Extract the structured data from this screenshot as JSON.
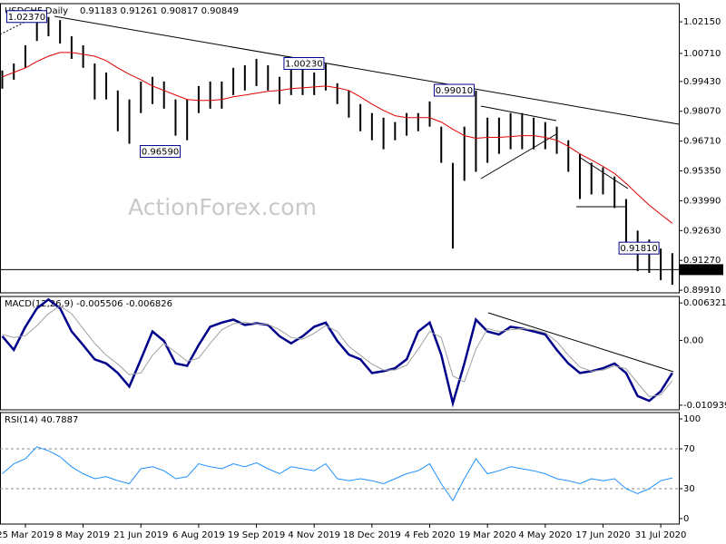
{
  "chart_data": [
    {
      "type": "hilo",
      "title": "USDCHF,Daily",
      "subtitle": "0.91183 0.91261 0.90817 0.90849",
      "watermark": "ActionForex.com",
      "color": "#000000",
      "high": [
        0.9993,
        1.0025,
        1.0108,
        1.0231,
        1.0237,
        1.0223,
        1.0149,
        1.0108,
        1.0025,
        0.9984,
        0.9902,
        0.9861,
        0.9943,
        0.9964,
        0.9943,
        0.9861,
        0.9861,
        0.9922,
        0.9943,
        0.9943,
        1.0005,
        1.0017,
        1.0046,
        1.0017,
        0.9964,
        1.0005,
        1.0005,
        0.9984,
        1.0023,
        0.9935,
        0.9902,
        0.984,
        0.9799,
        0.9778,
        0.9758,
        0.9799,
        0.9799,
        0.9852,
        0.9737,
        0.9572,
        0.9737,
        0.9901,
        0.9778,
        0.9778,
        0.9799,
        0.9799,
        0.9778,
        0.9758,
        0.9737,
        0.9675,
        0.9613,
        0.9572,
        0.9552,
        0.951,
        0.9407,
        0.9263,
        0.9222,
        0.9181,
        0.916
      ],
      "low": [
        0.991,
        0.9951,
        1.0005,
        1.0128,
        1.0149,
        1.0116,
        1.0046,
        1.0005,
        0.9861,
        0.9861,
        0.9716,
        0.9659,
        0.9799,
        0.984,
        0.9819,
        0.9696,
        0.9675,
        0.9799,
        0.9819,
        0.9819,
        0.9881,
        0.9902,
        0.9922,
        0.9902,
        0.984,
        0.9881,
        0.9881,
        0.9881,
        0.9902,
        0.984,
        0.9778,
        0.9716,
        0.9675,
        0.9634,
        0.9675,
        0.9696,
        0.9716,
        0.9737,
        0.9572,
        0.9181,
        0.949,
        0.9531,
        0.9572,
        0.9613,
        0.9634,
        0.9634,
        0.9634,
        0.9634,
        0.9613,
        0.9531,
        0.9407,
        0.9428,
        0.9428,
        0.9366,
        0.9202,
        0.9078,
        0.907,
        0.9037,
        0.9016
      ],
      "overlay": {
        "color": "#e00000",
        "values": [
          0.9964,
          0.9984,
          1.0005,
          1.0034,
          1.0058,
          1.0075,
          1.0075,
          1.0067,
          1.0058,
          1.0038,
          1.0005,
          0.9976,
          0.9951,
          0.9922,
          0.9902,
          0.9881,
          0.9861,
          0.9857,
          0.9857,
          0.9861,
          0.9873,
          0.9881,
          0.989,
          0.9898,
          0.9902,
          0.991,
          0.9914,
          0.9918,
          0.9922,
          0.9914,
          0.9902,
          0.9873,
          0.984,
          0.9811,
          0.9787,
          0.9778,
          0.9778,
          0.9778,
          0.9758,
          0.9725,
          0.9696,
          0.9684,
          0.9688,
          0.9688,
          0.9692,
          0.9696,
          0.9696,
          0.9688,
          0.9675,
          0.9647,
          0.9613,
          0.9585,
          0.9556,
          0.9523,
          0.9478,
          0.9428,
          0.9379,
          0.9337,
          0.9296
        ]
      },
      "annotations": [
        {
          "value": 1.0237,
          "label": "1.02370"
        },
        {
          "value": 1.0023,
          "label": "1.00230"
        },
        {
          "value": 0.9901,
          "label": "0.99010"
        },
        {
          "value": 0.9659,
          "label": "0.96590"
        },
        {
          "value": 0.9181,
          "label": "0.91810"
        }
      ],
      "last_price": {
        "value": 0.90849,
        "label": "0.90849"
      },
      "ylim": [
        0.8979,
        1.0298
      ],
      "yticks": [
        {
          "value": 1.0215,
          "label": "1.02150"
        },
        {
          "value": 1.0071,
          "label": "1.00710"
        },
        {
          "value": 0.9943,
          "label": "0.99430"
        },
        {
          "value": 0.9807,
          "label": "0.98070"
        },
        {
          "value": 0.9671,
          "label": "0.96710"
        },
        {
          "value": 0.9535,
          "label": "0.95350"
        },
        {
          "value": 0.9399,
          "label": "0.93990"
        },
        {
          "value": 0.9263,
          "label": "0.92630"
        },
        {
          "value": 0.9127,
          "label": "0.91270"
        },
        {
          "value": 0.8991,
          "label": "0.89910"
        }
      ]
    },
    {
      "type": "line",
      "title": "MACD(12,26,9) -0.005506 -0.006826",
      "series": [
        {
          "color": "#00008b",
          "width": 2.5,
          "values": [
            0.0007,
            -0.0016,
            0.0023,
            0.0054,
            0.0069,
            0.0054,
            0.0015,
            -0.0008,
            -0.0032,
            -0.0039,
            -0.0055,
            -0.0078,
            -0.0032,
            0.0015,
            -0.0001,
            -0.0039,
            -0.0043,
            -0.0008,
            0.0023,
            0.003,
            0.0035,
            0.0026,
            0.0029,
            0.0026,
            0.0007,
            -0.0005,
            0.0007,
            0.0023,
            0.003,
            -0.0001,
            -0.0024,
            -0.0032,
            -0.0055,
            -0.0052,
            -0.0047,
            -0.0032,
            0.0015,
            0.003,
            -0.0024,
            -0.0106,
            -0.0039,
            0.0035,
            0.0015,
            0.001,
            0.0023,
            0.002,
            0.0015,
            0.001,
            -0.0016,
            -0.0039,
            -0.0055,
            -0.0052,
            -0.0047,
            -0.0039,
            -0.0055,
            -0.0094,
            -0.0102,
            -0.0086,
            -0.0055
          ]
        },
        {
          "color": "#a0a0a0",
          "width": 1,
          "values": [
            0.001,
            0.0005,
            0.0008,
            0.0025,
            0.0045,
            0.0058,
            0.0045,
            0.002,
            -0.0005,
            -0.0025,
            -0.004,
            -0.0058,
            -0.0055,
            -0.0025,
            -0.0005,
            -0.002,
            -0.0035,
            -0.003,
            -0.0005,
            0.0018,
            0.0028,
            0.003,
            0.0028,
            0.0027,
            0.0018,
            0.0005,
            0.0002,
            0.0012,
            0.0025,
            0.0015,
            -0.001,
            -0.0025,
            -0.004,
            -0.005,
            -0.005,
            -0.0042,
            -0.0015,
            0.0015,
            0.0005,
            -0.006,
            -0.007,
            -0.0015,
            0.002,
            0.0015,
            0.0018,
            0.002,
            0.0018,
            0.0013,
            -0.0002,
            -0.0025,
            -0.0045,
            -0.0052,
            -0.005,
            -0.0043,
            -0.0048,
            -0.0072,
            -0.0095,
            -0.0092,
            -0.0068
          ]
        }
      ],
      "ylim": [
        -0.01172,
        0.00741
      ],
      "yticks": [
        0.006321,
        {
          "value": 0,
          "label": "0.00"
        },
        -0.010939
      ]
    },
    {
      "type": "line",
      "title": "RSI(14) 40.7887",
      "series": [
        {
          "color": "#1e90ff",
          "width": 1,
          "values": [
            45,
            55,
            60,
            72,
            68,
            62,
            52,
            45,
            40,
            42,
            38,
            35,
            50,
            52,
            48,
            40,
            42,
            55,
            52,
            50,
            55,
            52,
            56,
            50,
            45,
            52,
            50,
            48,
            55,
            40,
            38,
            40,
            38,
            35,
            40,
            45,
            48,
            55,
            35,
            18,
            40,
            60,
            45,
            48,
            52,
            50,
            48,
            45,
            40,
            38,
            35,
            40,
            38,
            40,
            30,
            25,
            30,
            38,
            40.79
          ]
        }
      ],
      "levels": [
        70,
        30
      ],
      "ylim": [
        -5.5,
        106.4
      ],
      "yticks": [
        100,
        70,
        30,
        0
      ],
      "categories": [
        null,
        null,
        "25 Mar 2019",
        null,
        null,
        null,
        null,
        "8 May 2019",
        null,
        null,
        null,
        null,
        "21 Jun 2019",
        null,
        null,
        null,
        null,
        "6 Aug 2019",
        null,
        null,
        null,
        null,
        "19 Sep 2019",
        null,
        null,
        null,
        null,
        "4 Nov 2019",
        null,
        null,
        null,
        null,
        "18 Dec 2019",
        null,
        null,
        null,
        null,
        "4 Feb 2020",
        null,
        null,
        null,
        null,
        "19 Mar 2020",
        null,
        null,
        null,
        null,
        "4 May 2020",
        null,
        null,
        null,
        null,
        "17 Jun 2020",
        null,
        null,
        null,
        null,
        "31 Jul 2020",
        null
      ]
    }
  ]
}
